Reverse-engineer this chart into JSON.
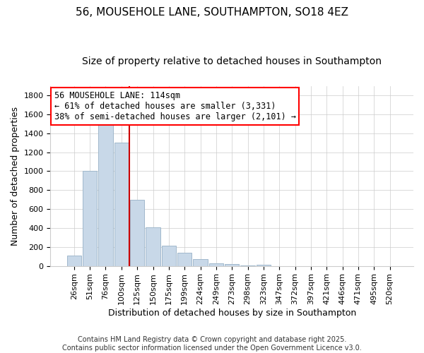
{
  "title": "56, MOUSEHOLE LANE, SOUTHAMPTON, SO18 4EZ",
  "subtitle": "Size of property relative to detached houses in Southampton",
  "xlabel": "Distribution of detached houses by size in Southampton",
  "ylabel": "Number of detached properties",
  "bar_color": "#c8d8e8",
  "bar_edge_color": "#a0b8cc",
  "vline_color": "#cc0000",
  "categories": [
    "26sqm",
    "51sqm",
    "76sqm",
    "100sqm",
    "125sqm",
    "150sqm",
    "175sqm",
    "199sqm",
    "224sqm",
    "249sqm",
    "273sqm",
    "298sqm",
    "323sqm",
    "347sqm",
    "372sqm",
    "397sqm",
    "421sqm",
    "446sqm",
    "471sqm",
    "495sqm",
    "520sqm"
  ],
  "values": [
    110,
    1000,
    1500,
    1300,
    700,
    410,
    210,
    135,
    75,
    30,
    20,
    5,
    15,
    0,
    0,
    0,
    0,
    0,
    0,
    0,
    0
  ],
  "vline_index": 3.5,
  "ylim": [
    0,
    1900
  ],
  "yticks": [
    0,
    200,
    400,
    600,
    800,
    1000,
    1200,
    1400,
    1600,
    1800
  ],
  "annotation_line1": "56 MOUSEHOLE LANE: 114sqm",
  "annotation_line2": "← 61% of detached houses are smaller (3,331)",
  "annotation_line3": "38% of semi-detached houses are larger (2,101) →",
  "bg_color": "#ffffff",
  "grid_color": "#cccccc",
  "footer_line1": "Contains HM Land Registry data © Crown copyright and database right 2025.",
  "footer_line2": "Contains public sector information licensed under the Open Government Licence v3.0.",
  "title_fontsize": 11,
  "subtitle_fontsize": 10,
  "axis_label_fontsize": 9,
  "tick_fontsize": 8,
  "annotation_fontsize": 8.5,
  "footer_fontsize": 7
}
